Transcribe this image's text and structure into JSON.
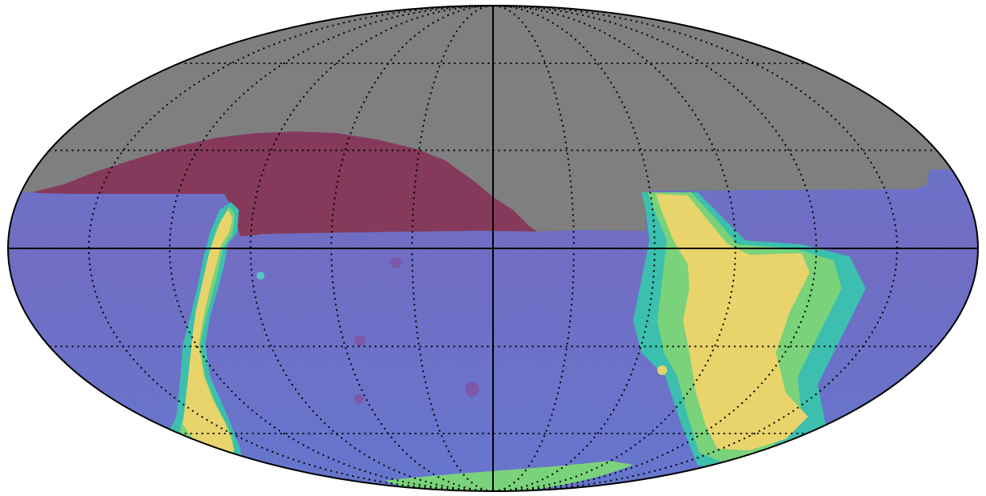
{
  "map": {
    "projection": "mollweide",
    "colors": {
      "unobserved": "#7f7f7f",
      "excluded": "#853a5c",
      "low": "#6b5fb5",
      "mid": "#4a8fd4",
      "high_teal": "#3cbfae",
      "high_green": "#7ad27a",
      "saturated": "#e9d46c",
      "grid": "#000000",
      "outline": "#000000"
    },
    "graticule": {
      "meridian_step_deg": 30,
      "parallel_step_deg": 30,
      "style": "dotted",
      "axes_style": "solid"
    },
    "regions": [
      "unobserved-north-cap",
      "excluded-region",
      "survey-footprint",
      "galactic-plane-band-left",
      "galactic-plane-band-right"
    ]
  }
}
